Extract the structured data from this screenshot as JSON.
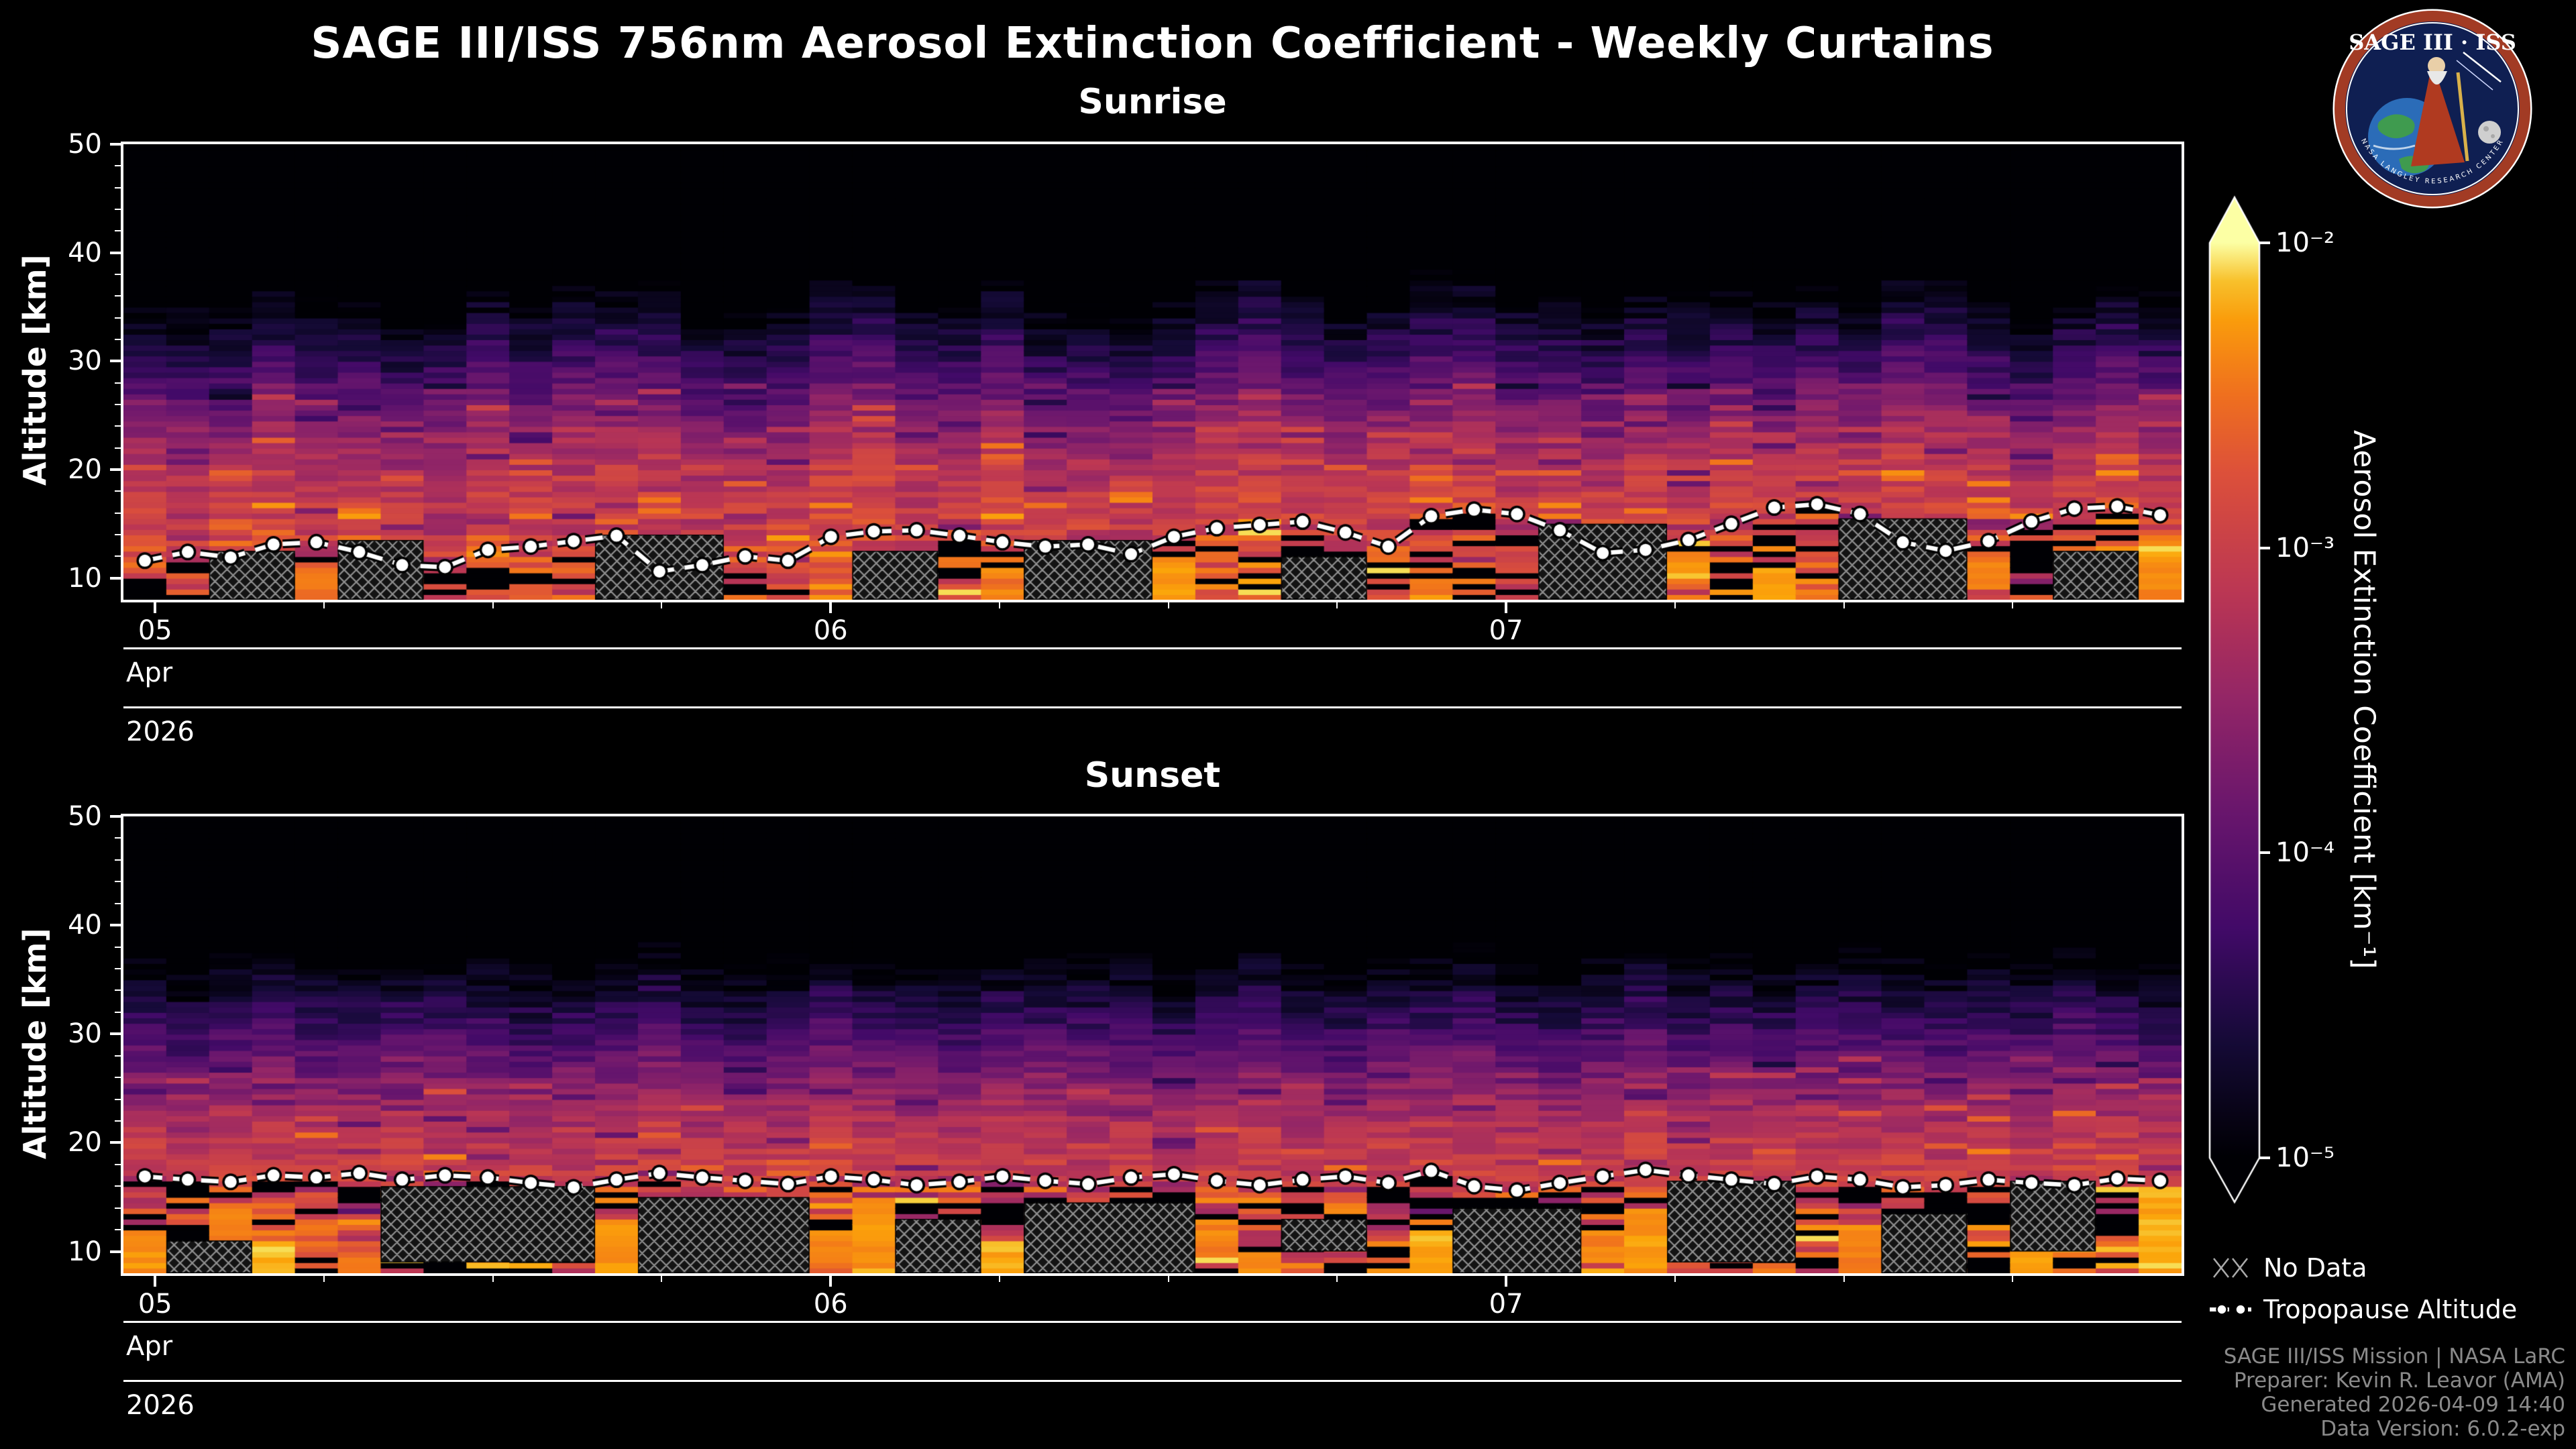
{
  "title": "SAGE III/ISS 756nm Aerosol Extinction Coefficient - Weekly Curtains",
  "logo": {
    "title": "SAGE III · ISS",
    "ring_text": "NASA LANGLEY RESEARCH CENTER"
  },
  "legend": {
    "no_data": "No Data",
    "tropopause": "Tropopause Altitude"
  },
  "credits": {
    "line1": "SAGE III/ISS Mission | NASA LaRC",
    "line2": "Preparer: Kevin R. Leavor (AMA)",
    "line3": "Generated 2026-04-09 14:40",
    "line4": "Data Version: 6.0.2-exp"
  },
  "chart_data": {
    "type": "heatmap",
    "n_columns": 48,
    "x_axis": {
      "tick_labels": [
        "05",
        "06",
        "07"
      ],
      "tick_days": [
        5,
        6,
        7
      ],
      "minor_tick_interval_days": 0.25,
      "month": "Apr",
      "year": "2026",
      "domain_days": [
        4.953,
        8.0
      ]
    },
    "y_axis": {
      "label": "Altitude [km]",
      "ticks": [
        10,
        20,
        30,
        40,
        50
      ],
      "range_km": [
        8,
        50
      ]
    },
    "color_scale": {
      "label": "Aerosol Extinction Coefficient [km⁻¹]",
      "log10_range": [
        -5,
        -2
      ],
      "ticks": [
        {
          "log10": -2,
          "label": "10⁻²"
        },
        {
          "log10": -3,
          "label": "10⁻³"
        },
        {
          "log10": -4,
          "label": "10⁻⁴"
        },
        {
          "log10": -5,
          "label": "10⁻⁵"
        }
      ],
      "colormap": [
        [
          0,
          "#000004"
        ],
        [
          0.13,
          "#160b39"
        ],
        [
          0.25,
          "#420a68"
        ],
        [
          0.38,
          "#6a176e"
        ],
        [
          0.5,
          "#932667"
        ],
        [
          0.62,
          "#bc3754"
        ],
        [
          0.75,
          "#dd513a"
        ],
        [
          0.85,
          "#f3771a"
        ],
        [
          0.93,
          "#fca50a"
        ],
        [
          0.98,
          "#f6d746"
        ],
        [
          1,
          "#fcffa4"
        ]
      ]
    },
    "profile_model": {
      "altitudes_km": [
        8,
        10,
        14,
        18,
        22,
        26,
        30,
        33,
        36,
        39,
        50
      ],
      "log10_extinction": [
        -2.75,
        -2.9,
        -3.0,
        -3.15,
        -3.5,
        -4.0,
        -4.5,
        -4.85,
        -5.3,
        -6.0,
        -6.5
      ]
    },
    "panels": [
      {
        "name": "Sunrise",
        "bottom_noise_amp": 0.5,
        "tropopause_km": [
          11.6,
          12.4,
          11.9,
          13.1,
          13.3,
          12.4,
          11.2,
          11.0,
          12.6,
          12.9,
          13.4,
          13.9,
          10.6,
          11.2,
          12.0,
          11.6,
          13.8,
          14.3,
          14.4,
          13.9,
          13.3,
          12.9,
          13.1,
          12.2,
          13.8,
          14.6,
          14.9,
          15.2,
          14.2,
          12.9,
          15.7,
          16.3,
          15.9,
          14.4,
          12.3,
          12.6,
          13.5,
          15.0,
          16.5,
          16.8,
          15.9,
          13.3,
          12.5,
          13.4,
          15.2,
          16.4,
          16.6,
          15.8
        ],
        "layer_top_shift_km": [
          0,
          1,
          -1,
          2,
          1,
          0,
          -2,
          1,
          2,
          0,
          3,
          2,
          1,
          0,
          -1,
          1,
          2,
          3,
          1,
          0,
          2,
          1,
          0,
          -1,
          1,
          2,
          3,
          2,
          0,
          1,
          2,
          3,
          2,
          1,
          0,
          1,
          2,
          1,
          0,
          2,
          1,
          3,
          2,
          1,
          0,
          1,
          2,
          1
        ],
        "column_jitter": [
          0.05,
          -0.08,
          0.12,
          0.02,
          -0.05,
          0.1,
          0.15,
          -0.12,
          0.03,
          0.08,
          -0.1,
          0.05,
          0.12,
          -0.03,
          0.07,
          -0.09,
          0.11,
          0.04,
          -0.06,
          0.09,
          0.13,
          -0.11,
          0.02,
          0.06,
          -0.04,
          0.1,
          0.14,
          -0.07,
          0.03,
          0.08,
          0.12,
          0.05,
          -0.09,
          0.02,
          0.07,
          0.11,
          -0.05,
          0.09,
          0.13,
          0.04,
          -0.08,
          0.06,
          0.1,
          0.03,
          -0.06,
          0.08,
          0.12,
          0.05
        ],
        "no_data_blocks": [
          [
            2,
            3,
            8,
            12.5
          ],
          [
            5,
            6,
            8,
            13.5
          ],
          [
            11,
            13,
            8,
            14
          ],
          [
            17,
            18,
            8,
            12.5
          ],
          [
            21,
            23,
            8,
            13.5
          ],
          [
            27,
            28,
            8,
            12
          ],
          [
            33,
            35,
            8,
            15
          ],
          [
            40,
            42,
            8,
            15.5
          ],
          [
            45,
            46,
            8,
            12.5
          ]
        ],
        "bright_patches": [
          [
            3,
            8,
            10,
            -2.35
          ],
          [
            4,
            8,
            11,
            -2.45
          ],
          [
            12,
            9,
            10.5,
            -2.3
          ],
          [
            20,
            8,
            10,
            -2.5
          ],
          [
            24,
            8,
            12,
            -2.3
          ],
          [
            30,
            8,
            10,
            -2.45
          ],
          [
            36,
            10,
            12,
            -2.3
          ],
          [
            38,
            8,
            11,
            -2.2
          ],
          [
            43,
            9,
            12,
            -2.4
          ],
          [
            46,
            8,
            13,
            -2.25
          ],
          [
            47,
            8,
            14,
            -2.35
          ]
        ]
      },
      {
        "name": "Sunset",
        "bottom_noise_amp": 0.75,
        "tropopause_km": [
          16.9,
          16.6,
          16.4,
          17.0,
          16.8,
          17.2,
          16.6,
          17.0,
          16.8,
          16.3,
          15.9,
          16.6,
          17.2,
          16.8,
          16.5,
          16.2,
          16.9,
          16.6,
          16.1,
          16.4,
          16.9,
          16.5,
          16.2,
          16.8,
          17.1,
          16.5,
          16.1,
          16.6,
          16.9,
          16.3,
          17.4,
          16.0,
          15.6,
          16.3,
          16.9,
          17.5,
          17.0,
          16.6,
          16.2,
          16.9,
          16.6,
          15.9,
          16.1,
          16.6,
          16.3,
          16.1,
          16.7,
          16.5
        ],
        "layer_top_shift_km": [
          2,
          1,
          2,
          3,
          2,
          1,
          2,
          3,
          2,
          1,
          2,
          2,
          3,
          2,
          1,
          2,
          3,
          2,
          2,
          1,
          2,
          3,
          2,
          2,
          1,
          2,
          3,
          2,
          1,
          2,
          2,
          3,
          2,
          1,
          2,
          3,
          2,
          2,
          1,
          2,
          3,
          2,
          1,
          2,
          2,
          3,
          2,
          1
        ],
        "column_jitter": [
          0.03,
          -0.04,
          0.05,
          0.01,
          -0.03,
          0.04,
          0.06,
          -0.05,
          0.02,
          0.04,
          -0.04,
          0.03,
          0.05,
          -0.02,
          0.03,
          -0.04,
          0.05,
          0.02,
          -0.03,
          0.04,
          0.06,
          -0.05,
          0.01,
          0.03,
          -0.02,
          0.04,
          0.05,
          -0.03,
          0.02,
          0.04,
          0.05,
          0.02,
          -0.04,
          0.01,
          0.03,
          0.05,
          -0.02,
          0.04,
          0.06,
          0.02,
          -0.04,
          0.03,
          0.05,
          0.01,
          -0.03,
          0.04,
          0.05,
          0.02
        ],
        "no_data_blocks": [
          [
            1,
            2,
            8,
            11
          ],
          [
            6,
            10,
            9,
            16
          ],
          [
            12,
            15,
            8,
            15
          ],
          [
            18,
            19,
            8,
            13
          ],
          [
            21,
            24,
            8,
            14.5
          ],
          [
            27,
            28,
            10,
            13
          ],
          [
            31,
            33,
            8,
            14
          ],
          [
            36,
            38,
            9,
            16.5
          ],
          [
            41,
            42,
            8,
            13.5
          ],
          [
            44,
            45,
            10,
            16.5
          ]
        ],
        "bright_patches": [
          [
            0,
            8,
            12,
            -2.3
          ],
          [
            2,
            9,
            14,
            -2.4
          ],
          [
            3,
            8,
            11,
            -2.2
          ],
          [
            5,
            8,
            10,
            -2.5
          ],
          [
            11,
            8,
            13,
            -2.3
          ],
          [
            16,
            9,
            12,
            -2.4
          ],
          [
            17,
            8,
            15,
            -2.3
          ],
          [
            20,
            8,
            11,
            -2.2
          ],
          [
            25,
            9,
            13,
            -2.4
          ],
          [
            26,
            8,
            10,
            -2.3
          ],
          [
            30,
            8,
            12,
            -2.2
          ],
          [
            34,
            9,
            12,
            -2.4
          ],
          [
            35,
            8,
            14,
            -2.3
          ],
          [
            40,
            8,
            12,
            -2.4
          ],
          [
            44,
            8,
            13,
            -2.3
          ],
          [
            47,
            8,
            16,
            -2.2
          ]
        ]
      }
    ]
  }
}
